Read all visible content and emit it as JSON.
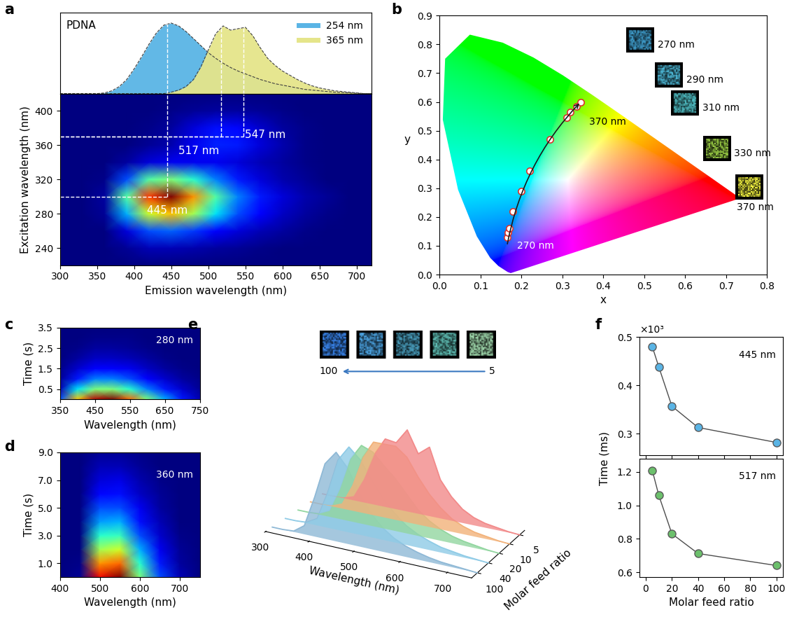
{
  "chart_data": [
    {
      "panel": "a",
      "type": "heatmap_spectra",
      "spectra": {
        "type": "area",
        "text": "PDNA",
        "x": [
          300,
          310,
          320,
          330,
          340,
          350,
          360,
          370,
          380,
          390,
          400,
          410,
          420,
          430,
          440,
          450,
          460,
          470,
          480,
          490,
          500,
          510,
          520,
          530,
          540,
          550,
          560,
          570,
          580,
          590,
          600,
          610,
          620,
          630,
          640,
          650,
          660,
          670,
          680,
          690,
          700,
          710,
          720
        ],
        "xlim": [
          300,
          720
        ],
        "ylim": [
          0,
          1.15
        ],
        "tick_labels": false,
        "legend": "upper right",
        "series": [
          {
            "name": "254 nm",
            "color": "#5ab4e5",
            "values": [
              0,
              0,
              0,
              0,
              0,
              0,
              0.01,
              0.04,
              0.1,
              0.2,
              0.35,
              0.52,
              0.7,
              0.86,
              0.97,
              1.0,
              0.96,
              0.88,
              0.78,
              0.68,
              0.58,
              0.5,
              0.43,
              0.37,
              0.32,
              0.28,
              0.24,
              0.2,
              0.17,
              0.14,
              0.12,
              0.1,
              0.08,
              0.06,
              0.05,
              0.04,
              0.03,
              0.02,
              0.015,
              0.01,
              0.005,
              0,
              0
            ]
          },
          {
            "name": "365 nm",
            "color": "#e5e58a",
            "values": [
              0,
              0,
              0,
              0,
              0,
              0,
              0,
              0,
              0,
              0,
              0,
              0,
              0,
              0,
              0,
              0.02,
              0.05,
              0.1,
              0.2,
              0.38,
              0.62,
              0.85,
              0.96,
              0.9,
              0.92,
              0.94,
              0.82,
              0.65,
              0.5,
              0.4,
              0.32,
              0.26,
              0.2,
              0.15,
              0.11,
              0.08,
              0.06,
              0.04,
              0.03,
              0.02,
              0.01,
              0,
              0
            ]
          }
        ]
      },
      "map": {
        "type": "heatmap",
        "x_label": "Emission wavelength (nm)",
        "y_label": "Excitation wavelength (nm)",
        "x": [
          300,
          330,
          360,
          390,
          420,
          450,
          480,
          510,
          540,
          570,
          600,
          630,
          660,
          690,
          720
        ],
        "y": [
          220,
          240,
          260,
          280,
          300,
          320,
          340,
          360,
          380,
          400,
          420
        ],
        "cells": [
          [
            0,
            0,
            0,
            0,
            0,
            0,
            0,
            0,
            0,
            0,
            0,
            0,
            0,
            0,
            0
          ],
          [
            0,
            0,
            0,
            0.02,
            0.05,
            0.05,
            0.04,
            0.03,
            0.02,
            0.01,
            0,
            0,
            0,
            0,
            0
          ],
          [
            0,
            0,
            0,
            0.08,
            0.2,
            0.22,
            0.18,
            0.12,
            0.08,
            0.05,
            0.03,
            0.01,
            0,
            0,
            0
          ],
          [
            0,
            0,
            0.02,
            0.3,
            0.6,
            0.7,
            0.55,
            0.35,
            0.2,
            0.12,
            0.06,
            0.03,
            0.01,
            0,
            0
          ],
          [
            0,
            0,
            0.03,
            0.45,
            0.85,
            1.0,
            0.75,
            0.45,
            0.25,
            0.15,
            0.08,
            0.04,
            0.02,
            0,
            0
          ],
          [
            0,
            0,
            0.01,
            0.2,
            0.45,
            0.5,
            0.4,
            0.25,
            0.15,
            0.08,
            0.04,
            0.02,
            0,
            0,
            0
          ],
          [
            0,
            0,
            0,
            0.03,
            0.08,
            0.1,
            0.1,
            0.1,
            0.08,
            0.05,
            0.03,
            0.01,
            0,
            0,
            0
          ],
          [
            0,
            0,
            0,
            0,
            0.02,
            0.04,
            0.1,
            0.16,
            0.15,
            0.08,
            0.04,
            0.01,
            0,
            0,
            0
          ],
          [
            0,
            0,
            0,
            0,
            0.01,
            0.03,
            0.08,
            0.14,
            0.13,
            0.07,
            0.03,
            0.01,
            0,
            0,
            0
          ],
          [
            0,
            0,
            0,
            0,
            0,
            0.01,
            0.02,
            0.03,
            0.03,
            0.02,
            0.01,
            0,
            0,
            0,
            0
          ],
          [
            0,
            0,
            0,
            0,
            0,
            0,
            0,
            0,
            0,
            0,
            0,
            0,
            0,
            0,
            0
          ]
        ],
        "xlim": [
          300,
          720
        ],
        "ylim": [
          220,
          420
        ],
        "xticks": [
          300,
          350,
          400,
          450,
          500,
          550,
          600,
          650,
          700
        ],
        "yticks": [
          240,
          280,
          320,
          360,
          400
        ],
        "annotations": [
          {
            "text": "445 nm",
            "emission": 445,
            "excitation": 300
          },
          {
            "text": "517 nm",
            "emission": 517,
            "excitation": 370
          },
          {
            "text": "547 nm",
            "emission": 547,
            "excitation": 370
          }
        ]
      }
    },
    {
      "panel": "b",
      "type": "scatter",
      "x_label": "x",
      "y_label": "y",
      "xlim": [
        0.0,
        0.8
      ],
      "ylim": [
        0.0,
        0.9
      ],
      "xticks": [
        0.0,
        0.1,
        0.2,
        0.3,
        0.4,
        0.5,
        0.6,
        0.7,
        0.8
      ],
      "yticks": [
        0.0,
        0.1,
        0.2,
        0.3,
        0.4,
        0.5,
        0.6,
        0.7,
        0.8,
        0.9
      ],
      "locus": {
        "x": [
          0.1741,
          0.1666,
          0.144,
          0.1241,
          0.0913,
          0.0454,
          0.0082,
          0.0139,
          0.0743,
          0.1547,
          0.2296,
          0.3016,
          0.3731,
          0.4441,
          0.5125,
          0.5752,
          0.627,
          0.6658,
          0.6915,
          0.7079,
          0.7347
        ],
        "y": [
          0.005,
          0.0089,
          0.0297,
          0.0578,
          0.1327,
          0.295,
          0.5384,
          0.7502,
          0.8338,
          0.8059,
          0.7543,
          0.6923,
          0.6245,
          0.5547,
          0.4866,
          0.4242,
          0.3725,
          0.334,
          0.3083,
          0.292,
          0.2653
        ]
      },
      "x": [
        0.165,
        0.168,
        0.17,
        0.18,
        0.2,
        0.22,
        0.27,
        0.31,
        0.32,
        0.335,
        0.345
      ],
      "values": [
        0.13,
        0.145,
        0.16,
        0.22,
        0.29,
        0.36,
        0.47,
        0.545,
        0.565,
        0.585,
        0.6
      ],
      "color": "#d9342b",
      "start_label": "270 nm",
      "end_label": "370 nm",
      "insets": [
        "270 nm",
        "290 nm",
        "310 nm",
        "330 nm",
        "370 nm"
      ]
    },
    {
      "panel": "c",
      "type": "heatmap",
      "text": "280 nm",
      "x_label": "Wavelength (nm)",
      "y_label": "Time (s)",
      "x": [
        350,
        400,
        450,
        500,
        550,
        600,
        650,
        700,
        750
      ],
      "y": [
        0,
        0.5,
        1.0,
        1.5,
        2.0,
        2.5,
        3.0,
        3.5
      ],
      "cells": [
        [
          0.2,
          0.7,
          0.95,
          1.0,
          0.8,
          0.5,
          0.3,
          0.15,
          0.05
        ],
        [
          0.05,
          0.35,
          0.5,
          0.5,
          0.4,
          0.25,
          0.15,
          0.07,
          0.02
        ],
        [
          0.02,
          0.15,
          0.25,
          0.25,
          0.2,
          0.12,
          0.07,
          0.03,
          0.01
        ],
        [
          0.01,
          0.07,
          0.12,
          0.12,
          0.1,
          0.06,
          0.03,
          0.01,
          0
        ],
        [
          0,
          0.03,
          0.06,
          0.06,
          0.05,
          0.03,
          0.01,
          0,
          0
        ],
        [
          0,
          0.01,
          0.03,
          0.03,
          0.02,
          0.01,
          0,
          0,
          0
        ],
        [
          0,
          0,
          0.01,
          0.01,
          0.01,
          0,
          0,
          0,
          0
        ],
        [
          0,
          0,
          0,
          0,
          0,
          0,
          0,
          0,
          0
        ]
      ],
      "xlim": [
        350,
        750
      ],
      "ylim": [
        0,
        3.5
      ],
      "xticks": [
        350,
        450,
        550,
        650,
        750
      ],
      "yticks": [
        0.5,
        1.5,
        2.5,
        3.5
      ]
    },
    {
      "panel": "d",
      "type": "heatmap",
      "text": "360 nm",
      "x_label": "Wavelength (nm)",
      "y_label": "Time (s)",
      "x": [
        400,
        450,
        500,
        550,
        600,
        650,
        700,
        750
      ],
      "y": [
        0,
        1,
        2,
        3,
        4,
        5,
        6,
        7,
        8,
        9
      ],
      "cells": [
        [
          0,
          0.02,
          0.9,
          1.0,
          0.5,
          0.2,
          0.05,
          0
        ],
        [
          0,
          0.01,
          0.75,
          0.8,
          0.4,
          0.15,
          0.03,
          0
        ],
        [
          0,
          0,
          0.55,
          0.6,
          0.3,
          0.1,
          0.02,
          0
        ],
        [
          0,
          0,
          0.4,
          0.42,
          0.2,
          0.07,
          0.01,
          0
        ],
        [
          0,
          0,
          0.28,
          0.3,
          0.14,
          0.05,
          0,
          0
        ],
        [
          0,
          0,
          0.2,
          0.2,
          0.1,
          0.03,
          0,
          0
        ],
        [
          0,
          0,
          0.13,
          0.14,
          0.06,
          0.02,
          0,
          0
        ],
        [
          0,
          0,
          0.08,
          0.09,
          0.04,
          0.01,
          0,
          0
        ],
        [
          0,
          0,
          0.05,
          0.05,
          0.02,
          0,
          0,
          0
        ],
        [
          0,
          0,
          0.02,
          0.02,
          0.01,
          0,
          0,
          0
        ]
      ],
      "xlim": [
        400,
        750
      ],
      "ylim": [
        0,
        9
      ],
      "xticks": [
        400,
        500,
        600,
        700
      ],
      "yticks": [
        1.0,
        3.0,
        5.0,
        7.0,
        9.0
      ]
    },
    {
      "panel": "e",
      "type": "waterfall",
      "x_label": "Wavelength (nm)",
      "y_label": "Molar feed ratio",
      "x": [
        300,
        325,
        350,
        375,
        400,
        425,
        450,
        475,
        500,
        525,
        550,
        575,
        600,
        625,
        650,
        675,
        700,
        725,
        750
      ],
      "xlim": [
        300,
        750
      ],
      "xticks": [
        300,
        400,
        500,
        600,
        700
      ],
      "zlim": [
        0,
        1.1
      ],
      "inset_labels": [
        "100",
        "5"
      ],
      "series": [
        {
          "name": "100",
          "color": "#8fb9d6",
          "values": [
            0,
            0,
            0.01,
            0.1,
            0.45,
            0.85,
            1.0,
            0.85,
            0.6,
            0.4,
            0.27,
            0.18,
            0.12,
            0.08,
            0.05,
            0.03,
            0.02,
            0.01,
            0
          ]
        },
        {
          "name": "40",
          "color": "#8fcbe6",
          "values": [
            0,
            0,
            0.01,
            0.08,
            0.4,
            0.8,
            0.97,
            0.85,
            0.65,
            0.47,
            0.33,
            0.22,
            0.15,
            0.1,
            0.06,
            0.04,
            0.02,
            0.01,
            0
          ]
        },
        {
          "name": "20",
          "color": "#92d6a0",
          "values": [
            0,
            0,
            0.01,
            0.07,
            0.35,
            0.72,
            0.9,
            0.85,
            0.72,
            0.6,
            0.45,
            0.3,
            0.2,
            0.13,
            0.08,
            0.05,
            0.03,
            0.01,
            0
          ]
        },
        {
          "name": "10",
          "color": "#f2b27a",
          "values": [
            0,
            0,
            0.01,
            0.06,
            0.3,
            0.65,
            0.85,
            0.85,
            0.85,
            0.75,
            0.55,
            0.38,
            0.25,
            0.15,
            0.09,
            0.05,
            0.03,
            0.01,
            0
          ]
        },
        {
          "name": "5",
          "color": "#f28a8a",
          "values": [
            0,
            0,
            0.01,
            0.05,
            0.28,
            0.6,
            0.8,
            0.78,
            0.95,
            0.7,
            0.8,
            0.45,
            0.28,
            0.16,
            0.09,
            0.05,
            0.03,
            0.01,
            0
          ]
        }
      ]
    },
    {
      "panel": "f",
      "type": "line",
      "x_label": "Molar feed ratio",
      "y_label": "Time (ms)",
      "multiplier": "×10³",
      "x": [
        5,
        10,
        20,
        40,
        100
      ],
      "xlim": [
        -5,
        105
      ],
      "xticks": [
        0,
        20,
        40,
        60,
        80,
        100
      ],
      "marker": "o",
      "charts": [
        {
          "text": "445 nm",
          "color": "#5ab4e5",
          "values": [
            480,
            438,
            357,
            313,
            282
          ],
          "ylim": [
            255,
            500
          ],
          "yticks": [
            {
              "value": 300,
              "label": "0.3"
            },
            {
              "value": 400,
              "label": "0.4"
            },
            {
              "value": 500,
              "label": "0.5"
            }
          ],
          "tick_labels": "y"
        },
        {
          "text": "517 nm",
          "color": "#6cc06c",
          "values": [
            1210,
            1060,
            830,
            712,
            640
          ],
          "ylim": [
            570,
            1280
          ],
          "yticks": [
            {
              "value": 600,
              "label": "0.6"
            },
            {
              "value": 800,
              "label": "0.8"
            },
            {
              "value": 1000,
              "label": "1.0"
            },
            {
              "value": 1200,
              "label": "1.2"
            }
          ]
        }
      ]
    }
  ]
}
